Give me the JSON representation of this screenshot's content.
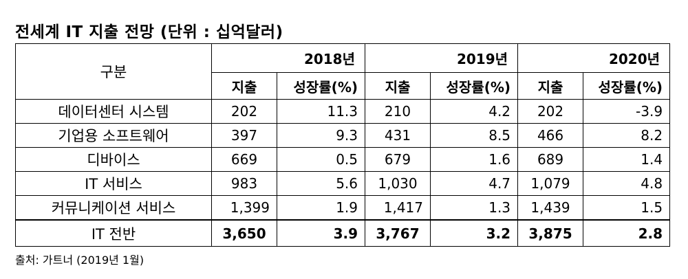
{
  "title": "전세계 IT 지출 전망 (단위 : 십억달러)",
  "header": {
    "category_label": "구분",
    "years": [
      "2018년",
      "2019년",
      "2020년"
    ],
    "spend_label": "지출",
    "growth_label": "성장률(%)"
  },
  "rows": [
    {
      "category": "데이터센터 시스템",
      "v2018": "202",
      "g2018": "11.3",
      "v2019": "210",
      "g2019": "4.2",
      "v2020": "202",
      "g2020": "-3.9"
    },
    {
      "category": "기업용 소프트웨어",
      "v2018": "397",
      "g2018": "9.3",
      "v2019": "431",
      "g2019": "8.5",
      "v2020": "466",
      "g2020": "8.2"
    },
    {
      "category": "디바이스",
      "v2018": "669",
      "g2018": "0.5",
      "v2019": "679",
      "g2019": "1.6",
      "v2020": "689",
      "g2020": "1.4"
    },
    {
      "category": "IT 서비스",
      "v2018": "983",
      "g2018": "5.6",
      "v2019": "1,030",
      "g2019": "4.7",
      "v2020": "1,079",
      "g2020": "4.8"
    },
    {
      "category": "커뮤니케이션 서비스",
      "v2018": "1,399",
      "g2018": "1.9",
      "v2019": "1,417",
      "g2019": "1.3",
      "v2020": "1,439",
      "g2020": "1.5"
    },
    {
      "category": "IT 전반",
      "v2018": "3,650",
      "g2018": "3.9",
      "v2019": "3,767",
      "g2019": "3.2",
      "v2020": "3,875",
      "g2020": "2.8"
    }
  ],
  "source": "출처: 가트너 (2019년 1월)"
}
